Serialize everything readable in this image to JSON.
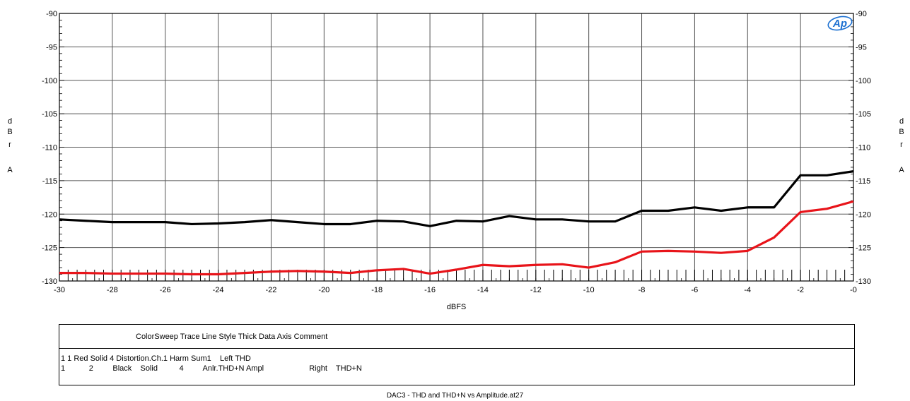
{
  "chart_data": {
    "type": "line",
    "xlabel": "dBFS",
    "ylabel_left": [
      "d",
      "B",
      "r",
      "A"
    ],
    "ylabel_right": [
      "d",
      "B",
      "r",
      "A"
    ],
    "xlim": [
      -30,
      0
    ],
    "ylim": [
      -130,
      -90
    ],
    "x_ticks": [
      -30,
      -28,
      -26,
      -24,
      -22,
      -20,
      -18,
      -16,
      -14,
      -12,
      -10,
      -8,
      -6,
      -4,
      -2,
      0
    ],
    "x_tick_labels": [
      "-30",
      "-28",
      "-26",
      "-24",
      "-22",
      "-20",
      "-18",
      "-16",
      "-14",
      "-12",
      "-10",
      "-8",
      "-6",
      "-4",
      "-2",
      "-0"
    ],
    "y_ticks": [
      -90,
      -95,
      -100,
      -105,
      -110,
      -115,
      -120,
      -125,
      -130
    ],
    "y_tick_labels": [
      "-90",
      "-95",
      "-100",
      "-105",
      "-110",
      "-115",
      "-120",
      "-125",
      "-130"
    ],
    "grid": true,
    "x": [
      -30,
      -29,
      -28,
      -27,
      -26,
      -25,
      -24,
      -23,
      -22,
      -21,
      -20,
      -19,
      -18,
      -17,
      -16,
      -15,
      -14,
      -13,
      -12,
      -11,
      -10,
      -9,
      -8,
      -7,
      -6,
      -5,
      -4,
      -3,
      -2,
      -1,
      0
    ],
    "series": [
      {
        "color": "#000000",
        "values": [
          -120.8,
          -121.0,
          -121.2,
          -121.2,
          -121.2,
          -121.5,
          -121.4,
          -121.2,
          -120.9,
          -121.2,
          -121.5,
          -121.5,
          -121.0,
          -121.1,
          -121.8,
          -121.0,
          -121.1,
          -120.3,
          -120.8,
          -120.8,
          -121.1,
          -121.1,
          -119.5,
          -119.5,
          -119.0,
          -119.5,
          -119.0,
          -119.0,
          -114.2,
          -114.2,
          -113.6
        ]
      },
      {
        "color": "#e8141a",
        "values": [
          -128.8,
          -128.8,
          -128.9,
          -128.9,
          -128.9,
          -129.0,
          -129.0,
          -128.8,
          -128.6,
          -128.5,
          -128.6,
          -128.8,
          -128.4,
          -128.2,
          -128.9,
          -128.3,
          -127.6,
          -127.8,
          -127.6,
          -127.5,
          -128.0,
          -127.2,
          -125.6,
          -125.5,
          -125.6,
          -125.8,
          -125.5,
          -123.5,
          -119.7,
          -119.2,
          -118.1
        ]
      }
    ]
  },
  "legend": {
    "header": "ColorSweep Trace Line Style Thick Data Axis Comment",
    "row1": "1 1 Red Solid 4 Distortion.Ch.1 Harm Sum1    Left THD",
    "row2": "1           2         Black    Solid          4         Anlr.THD+N Ampl                     Right    THD+N"
  },
  "footer": "DAC3 - THD and THD+N vs Amplitude.at27",
  "logo": {
    "name": "ap-logo",
    "text": "Ap",
    "color": "#1a6fd1"
  }
}
